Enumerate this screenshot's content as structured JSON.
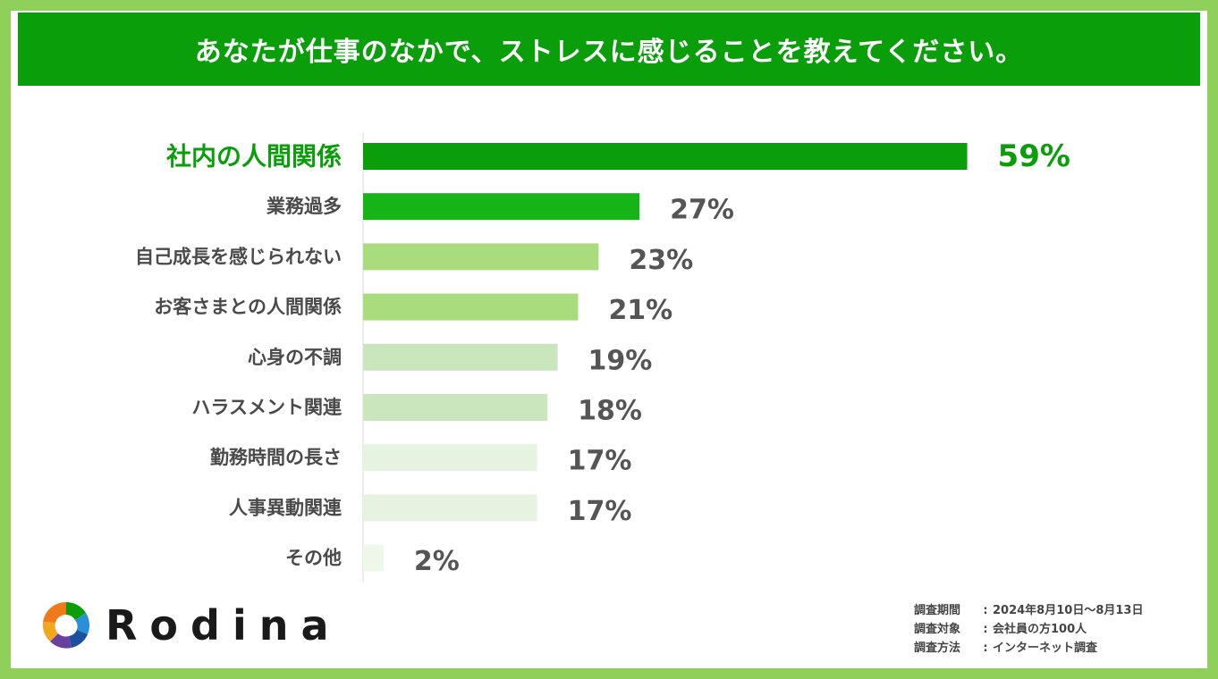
{
  "header": {
    "title": "あなたが仕事のなかで、ストレスに感じることを教えてください。"
  },
  "chart_data": {
    "type": "bar",
    "orientation": "horizontal",
    "title": "あなたが仕事のなかで、ストレスに感じることを教えてください。",
    "categories": [
      "社内の人間関係",
      "業務過多",
      "自己成長を感じられない",
      "お客さまとの人間関係",
      "心身の不調",
      "ハラスメント関連",
      "勤務時間の長さ",
      "人事異動関連",
      "その他"
    ],
    "values": [
      59,
      27,
      23,
      21,
      19,
      18,
      17,
      17,
      2
    ],
    "value_labels": [
      "59%",
      "27%",
      "23%",
      "21%",
      "19%",
      "18%",
      "17%",
      "17%",
      "2%"
    ],
    "unit": "%",
    "xlim": [
      0,
      100
    ],
    "colors": [
      "#0a9e0a",
      "#16b416",
      "#a9dc7c",
      "#a9dc7c",
      "#c9e6bd",
      "#c9e6bd",
      "#e5f3e0",
      "#e5f3e0",
      "#eef7ea"
    ],
    "highlight_color": "#0a9e0a"
  },
  "logo": {
    "text": "Rodina"
  },
  "survey": {
    "rows": [
      {
        "key": "調査期間",
        "value": "2024年8月10日〜8月13日"
      },
      {
        "key": "調査対象",
        "value": "会社員の方100人"
      },
      {
        "key": "調査方法",
        "value": "インターネット調査"
      }
    ]
  },
  "colors": {
    "frame": "#8fd05a",
    "header": "#0a9e0a"
  }
}
